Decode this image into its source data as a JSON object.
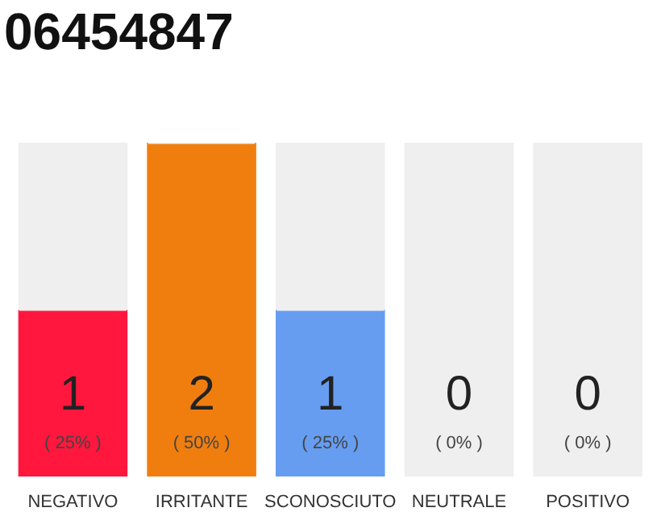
{
  "chart_data": {
    "type": "bar",
    "title": "06454847",
    "stacked": true,
    "categories": [
      "NEGATIVO",
      "IRRITANTE",
      "SCONOSCIUTO",
      "NEUTRALE",
      "POSITIVO"
    ],
    "ylim": [
      0,
      2
    ],
    "tick_labels": "x",
    "series": [
      {
        "colors": [
          "#ff173d",
          "#f07e0e",
          "#669df0",
          "#8bc34a",
          "#21a045"
        ],
        "values": [
          1,
          2,
          1,
          0,
          0
        ],
        "value_labels": [
          "1\n( 25% )",
          "2\n( 50% )",
          "1\n( 25% )",
          "0\n( 0% )",
          "0\n( 0% )"
        ]
      },
      {
        "color": "#efefef",
        "values": [
          1,
          0,
          1,
          2,
          2
        ]
      }
    ]
  }
}
